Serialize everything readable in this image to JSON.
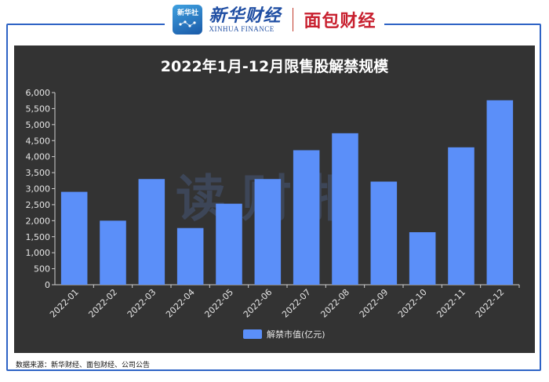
{
  "header": {
    "xinhua_badge": "新华社",
    "xinhua_cn": "新华财经",
    "xinhua_en": "XINHUA FINANCE",
    "partner": "面包财经"
  },
  "watermark": "读财报",
  "source_note": "数据来源：新华财经、面包财经、公司公告",
  "colors": {
    "bar": "#5b8ff9",
    "background": "#333333",
    "frame": "#2e63c5"
  },
  "chart_data": {
    "type": "bar",
    "title": "2022年1月-12月限售股解禁规模",
    "categories": [
      "2022-01",
      "2022-02",
      "2022-03",
      "2022-04",
      "2022-05",
      "2022-06",
      "2022-07",
      "2022-08",
      "2022-09",
      "2022-10",
      "2022-11",
      "2022-12"
    ],
    "series": [
      {
        "name": "解禁市值(亿元)",
        "values": [
          2900,
          2000,
          3300,
          1770,
          2530,
          3300,
          4200,
          4730,
          3220,
          1640,
          4290,
          5760
        ]
      }
    ],
    "ylim": [
      0,
      6000
    ],
    "yticks": [
      "0",
      "500",
      "1,000",
      "1,500",
      "2,000",
      "2,500",
      "3,000",
      "3,500",
      "4,000",
      "4,500",
      "5,000",
      "5,500",
      "6,000"
    ],
    "grid": false,
    "legend": "bottom-center"
  }
}
